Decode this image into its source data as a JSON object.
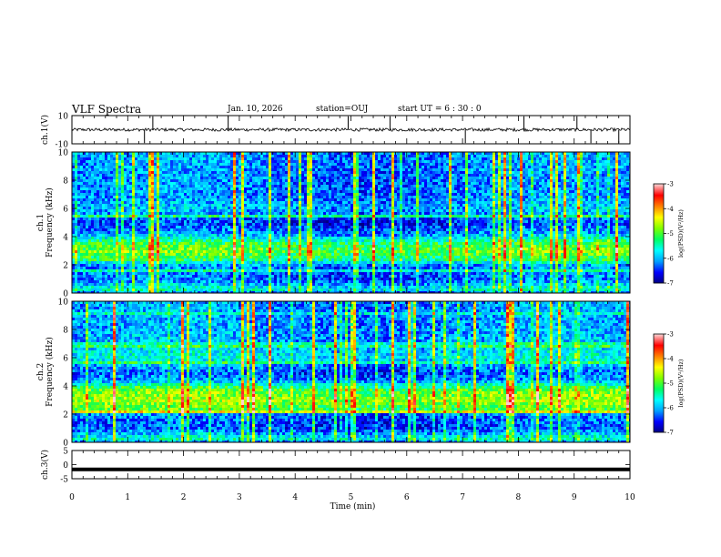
{
  "header": {
    "title": "VLF Spectra",
    "date": "Jan. 10, 2026",
    "station": "station=OUJ",
    "start_ut": "start  UT =   6 : 30 : 0"
  },
  "chart_data": [
    {
      "type": "line",
      "id": "ch1-waveform",
      "ylabel": "ch.1(V)",
      "ylim": [
        -10,
        10
      ],
      "yticks": [
        10,
        -10
      ],
      "xlim": [
        0,
        10
      ],
      "baseline": 0,
      "series_color": "#000000",
      "spike_times_min": [
        1.3,
        1.45,
        2.8,
        4.95,
        5.7,
        7.05,
        8.1,
        9.05,
        9.3,
        9.8
      ]
    },
    {
      "type": "heatmap",
      "id": "ch1-spectrogram",
      "ylabel": "ch.1\nFrequency (kHz)",
      "ylim": [
        0,
        10
      ],
      "yticks": [
        0,
        2,
        4,
        6,
        8,
        10
      ],
      "xlim": [
        0,
        10
      ],
      "colorbar": {
        "label": "log(PSD)(V²/Hz)",
        "range": [
          -7,
          -3
        ],
        "ticks": [
          -3,
          -4,
          -5,
          -6,
          -7
        ]
      },
      "band_profile": [
        [
          0,
          -6.5
        ],
        [
          0.3,
          -5.6
        ],
        [
          1,
          -6.3
        ],
        [
          2,
          -6.2
        ],
        [
          2.4,
          -5.3
        ],
        [
          3,
          -4.9
        ],
        [
          3.6,
          -5.2
        ],
        [
          4.2,
          -6.1
        ],
        [
          5,
          -6.5
        ],
        [
          6,
          -6.0
        ],
        [
          7,
          -6.2
        ],
        [
          8,
          -6.2
        ],
        [
          10,
          -6.1
        ]
      ]
    },
    {
      "type": "heatmap",
      "id": "ch2-spectrogram",
      "ylabel": "ch.2\nFrequency (kHz)",
      "ylim": [
        0,
        10
      ],
      "yticks": [
        0,
        2,
        4,
        6,
        8,
        10
      ],
      "xlim": [
        0,
        10
      ],
      "colorbar": {
        "label": "log(PSD)(V²/Hz)",
        "range": [
          -7,
          -3
        ],
        "ticks": [
          -3,
          -4,
          -5,
          -6,
          -7
        ]
      },
      "band_profile": [
        [
          0,
          -6.4
        ],
        [
          0.3,
          -5.6
        ],
        [
          1,
          -6.4
        ],
        [
          2,
          -6.3
        ],
        [
          2.2,
          -5.2
        ],
        [
          3,
          -4.7
        ],
        [
          3.8,
          -5.0
        ],
        [
          4.4,
          -6.1
        ],
        [
          5,
          -6.4
        ],
        [
          6,
          -5.7
        ],
        [
          7,
          -6.0
        ],
        [
          8,
          -6.1
        ],
        [
          10,
          -6.1
        ]
      ]
    },
    {
      "type": "line",
      "id": "ch3-waveform",
      "ylabel": "ch.3(V)",
      "ylim": [
        -5,
        5
      ],
      "yticks": [
        5,
        0,
        -5
      ],
      "xlim": [
        0,
        10
      ],
      "level": -1.7,
      "series_color": "#000000"
    }
  ],
  "xaxis": {
    "label": "Time (min)",
    "ticks": [
      0,
      1,
      2,
      3,
      4,
      5,
      6,
      7,
      8,
      9,
      10
    ]
  },
  "colormap": [
    "#000080",
    "#0000ff",
    "#00a0ff",
    "#00ffff",
    "#00ff60",
    "#80ff00",
    "#ffff00",
    "#ff8000",
    "#ff0000",
    "#ffd0d0"
  ]
}
